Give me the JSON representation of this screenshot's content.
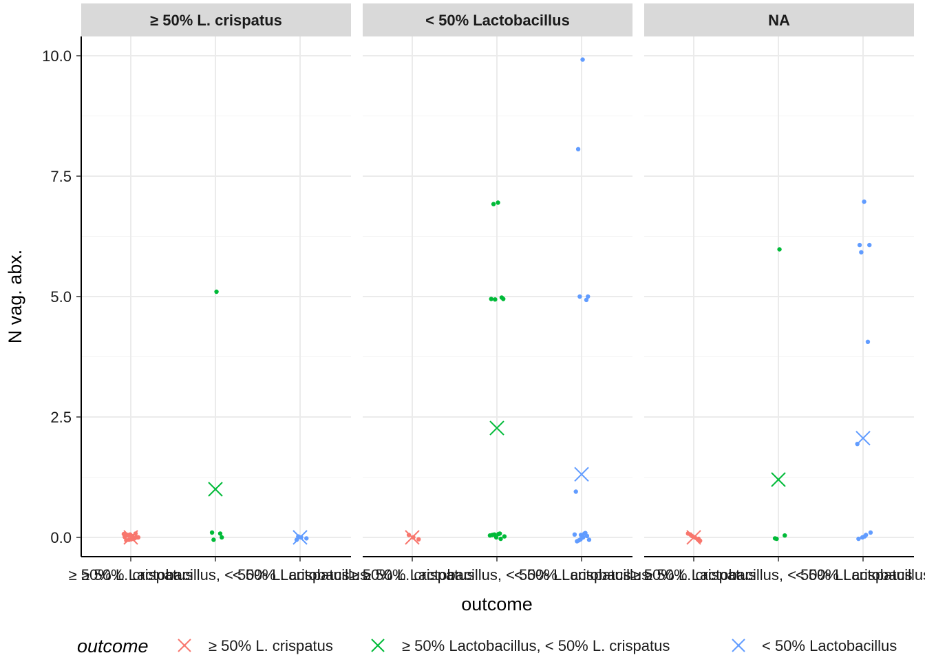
{
  "chart_data": {
    "type": "scatter",
    "facet_by": "initial vaginal state",
    "xlabel": "outcome",
    "ylabel": "N vag. abx.",
    "ylim": [
      -0.4,
      10.4
    ],
    "yticks": [
      0.0,
      2.5,
      5.0,
      7.5,
      10.0
    ],
    "ytick_labels": [
      "0.0",
      "2.5",
      "5.0",
      "7.5",
      "10.0"
    ],
    "grid": true,
    "legend_position": "bottom",
    "legend": {
      "title": "outcome",
      "entries": [
        "≥ 50% L. crispatus",
        "≥ 50% Lactobacillus, < 50% L. crispatus",
        "< 50% Lactobacillus"
      ]
    },
    "categories": [
      "≥ 50% L. crispatus",
      "≥ 50% Lactobacillus, < 50% L. crispatus",
      "< 50% Lactobacillus"
    ],
    "colors": [
      "#F8766D",
      "#00BA38",
      "#619CFF"
    ],
    "panels": [
      {
        "title": "≥ 50% L. crispatus",
        "means": [
          0.0,
          1.0,
          0.0
        ],
        "points": [
          [
            0.0,
            0.05,
            0.0,
            -0.05,
            0.08,
            0.02,
            -0.03,
            0.06,
            0.0,
            -0.06,
            0.03,
            0.07,
            -0.02,
            0.04,
            0.0,
            0.05,
            -0.04,
            0.01
          ],
          [
            5.1,
            0.1,
            0.0,
            -0.05,
            0.08
          ],
          [
            0.0,
            -0.05,
            -0.02,
            0.02
          ]
        ]
      },
      {
        "title": "< 50% Lactobacillus",
        "means": [
          0.0,
          2.27,
          1.31
        ],
        "points": [
          [
            0.0,
            0.05,
            -0.04
          ],
          [
            6.95,
            6.92,
            4.95,
            4.94,
            4.98,
            4.95,
            0.08,
            0.0,
            0.02,
            0.05,
            0.07,
            0.04,
            -0.03,
            0.06
          ],
          [
            9.92,
            8.06,
            5.0,
            5.0,
            4.93,
            0.95,
            0.08,
            0.05,
            -0.05,
            -0.08,
            0.0,
            0.06,
            0.09,
            -0.06,
            0.03,
            -0.04
          ]
        ]
      },
      {
        "title": "NA",
        "means": [
          0.0,
          1.2,
          2.06
        ],
        "points": [
          [
            0.0,
            0.06,
            -0.07,
            0.03,
            -0.03,
            0.08
          ],
          [
            5.98,
            -0.02,
            0.04,
            -0.03
          ],
          [
            6.97,
            6.07,
            6.07,
            5.92,
            4.06,
            1.94,
            0.05,
            0.0,
            0.1,
            -0.03,
            0.02
          ]
        ]
      }
    ]
  }
}
